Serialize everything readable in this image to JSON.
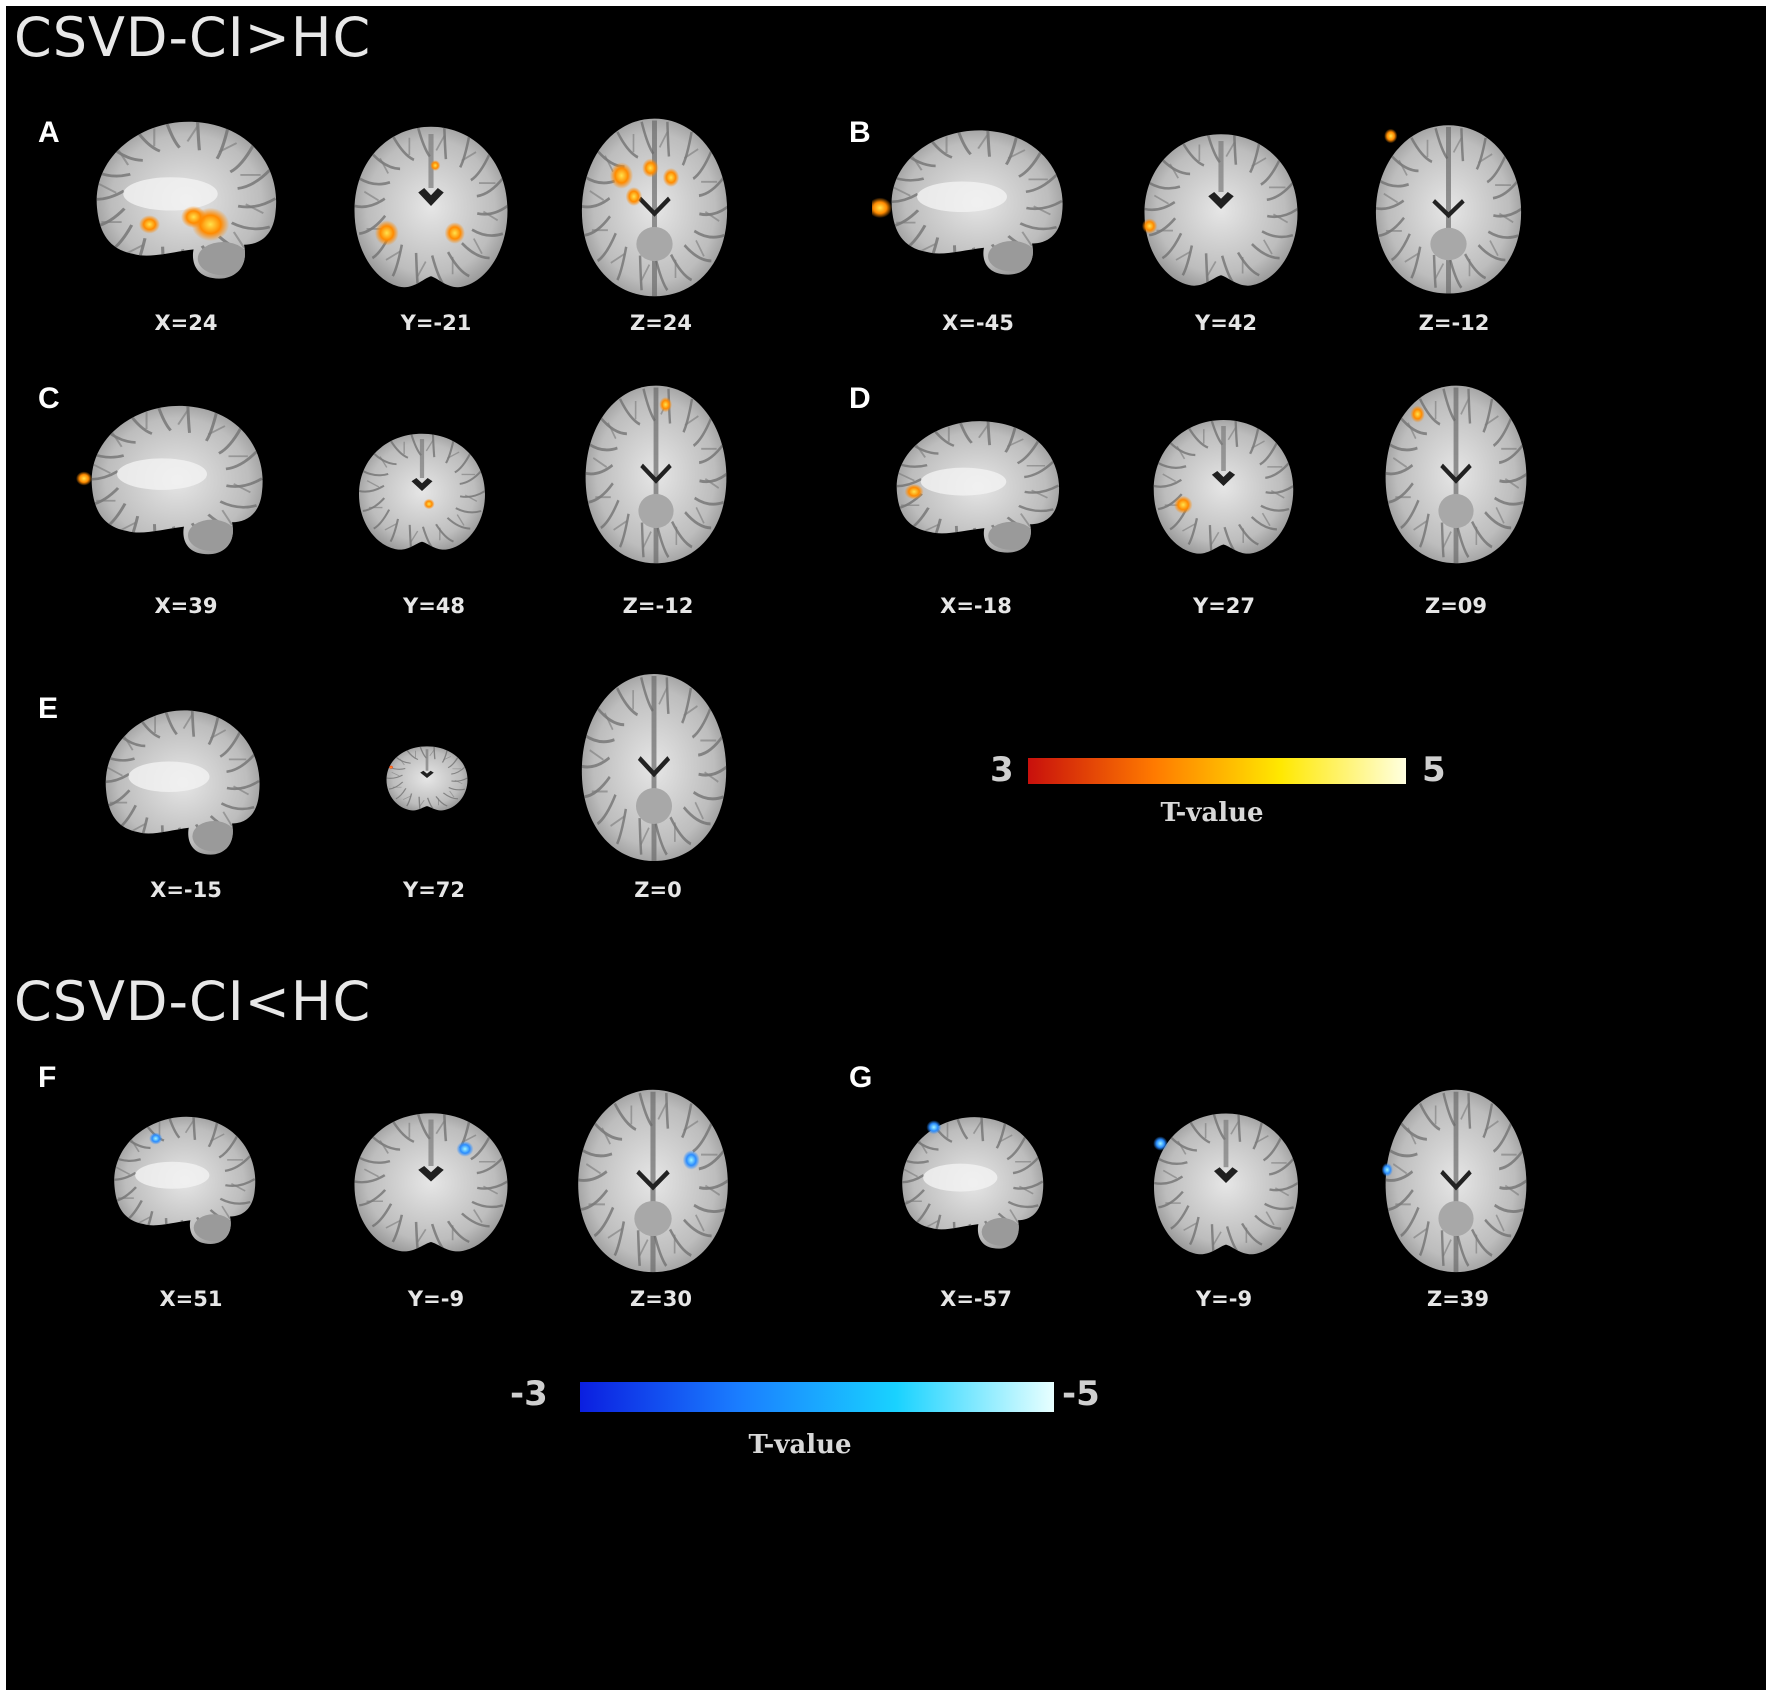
{
  "sections": {
    "positive": "CSVD-CI>HC",
    "negative": "CSVD-CI<HC"
  },
  "panels": [
    {
      "id": "A",
      "coords": [
        "X=24",
        "Y=-21",
        "Z=24"
      ],
      "color": "#ff8a00"
    },
    {
      "id": "B",
      "coords": [
        "X=-45",
        "Y=42",
        "Z=-12"
      ],
      "color": "#ff8a00"
    },
    {
      "id": "C",
      "coords": [
        "X=39",
        "Y=48",
        "Z=-12"
      ],
      "color": "#ff8a00"
    },
    {
      "id": "D",
      "coords": [
        "X=-18",
        "Y=27",
        "Z=09"
      ],
      "color": "#ff8a00"
    },
    {
      "id": "E",
      "coords": [
        "X=-15",
        "Y=72",
        "Z=0"
      ],
      "color": "#ff3a00"
    },
    {
      "id": "F",
      "coords": [
        "X=51",
        "Y=-9",
        "Z=30"
      ],
      "color": "#2a8cff"
    },
    {
      "id": "G",
      "coords": [
        "X=-57",
        "Y=-9",
        "Z=39"
      ],
      "color": "#2a8cff"
    }
  ],
  "colorbar_positive": {
    "min": "3",
    "max": "5",
    "label": "T-value",
    "colors": [
      "#c8100c",
      "#ff7a00",
      "#ffe800",
      "#ffffe0"
    ]
  },
  "colorbar_negative": {
    "min": "-3",
    "max": "-5",
    "label": "T-value",
    "colors": [
      "#0b1fe0",
      "#1a7dff",
      "#19d2ff",
      "#e8ffff"
    ]
  }
}
